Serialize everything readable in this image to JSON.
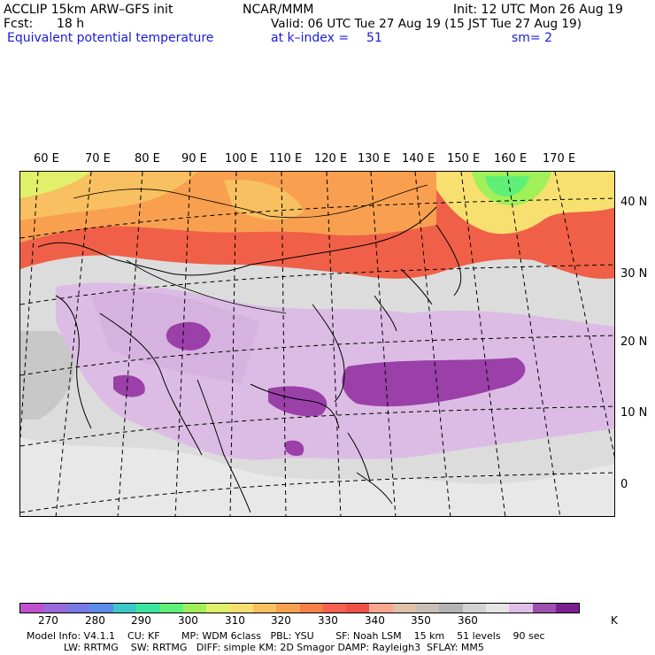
{
  "header": {
    "model_title": "ACCLIP 15km ARW–GFS init",
    "center": "NCAR/MMM",
    "init": "Init: 12 UTC Mon 26 Aug 19",
    "fcst_label": "Fcst:",
    "fcst_value": "18 h",
    "valid": "Valid: 06 UTC Tue 27 Aug 19 (15 JST Tue 27 Aug 19)",
    "field_name": "Equivalent potential temperature",
    "level": "at k–index =",
    "level_value": "51",
    "smoothing": "sm= 2"
  },
  "map": {
    "lon_labels": [
      "60 E",
      "70 E",
      "80 E",
      "90 E",
      "100 E",
      "110 E",
      "120 E",
      "130 E",
      "140 E",
      "150 E",
      "160 E",
      "170 E"
    ],
    "lat_labels": [
      "40 N",
      "30 N",
      "20 N",
      "10 N",
      "0"
    ]
  },
  "colorbar": {
    "unit": "K",
    "labels": [
      "270",
      "280",
      "290",
      "300",
      "310",
      "320",
      "330",
      "340",
      "350",
      "360"
    ],
    "colors": [
      "#c050d0",
      "#9a6adc",
      "#7878e6",
      "#5a8ce8",
      "#3cc8c8",
      "#3ce6a0",
      "#60f078",
      "#a0f05a",
      "#e0f06a",
      "#f8e070",
      "#f8c060",
      "#f8a050",
      "#f88048",
      "#f86050",
      "#f05048",
      "#f8a890",
      "#e0c0a8",
      "#c8c0b8",
      "#b4b4b4",
      "#d2d2d2",
      "#e6e6e6",
      "#e0c0e8",
      "#a050b0",
      "#7a2090"
    ]
  },
  "footer": {
    "line1": "Model Info: V4.1.1    CU: KF       MP: WDM 6class   PBL: YSU       SF: Noah LSM    15 km    51 levels    90 sec",
    "line2": "LW: RRTMG    SW: RRTMG   DIFF: simple KM: 2D Smagor DAMP: Rayleigh3  SFLAY: MM5"
  }
}
